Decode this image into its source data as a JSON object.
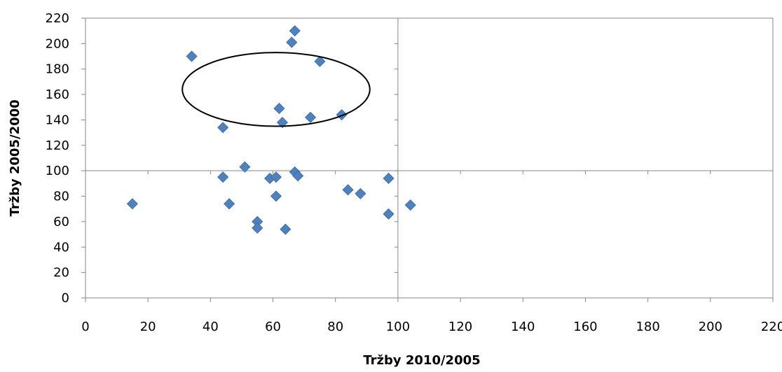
{
  "chart_data": {
    "type": "scatter",
    "title": "",
    "xlabel": "Tržby 2010/2005",
    "ylabel": "Tržby 2005/2000",
    "xlim": [
      0,
      220
    ],
    "ylim": [
      0,
      220
    ],
    "x_ticks": [
      0,
      20,
      40,
      60,
      80,
      100,
      120,
      140,
      160,
      180,
      200,
      220
    ],
    "y_ticks": [
      0,
      20,
      40,
      60,
      80,
      100,
      120,
      140,
      160,
      180,
      200,
      220
    ],
    "grid": false,
    "legend": "none",
    "reference_lines": {
      "x": 100,
      "y": 100
    },
    "highlight_ellipse": {
      "center": [
        61,
        164
      ],
      "radius": [
        30,
        29
      ]
    },
    "marker_color": "#4f81bd",
    "series": [
      {
        "points": [
          [
            15,
            74
          ],
          [
            34,
            190
          ],
          [
            44,
            134
          ],
          [
            44,
            95
          ],
          [
            46,
            74
          ],
          [
            51,
            103
          ],
          [
            55,
            60
          ],
          [
            55,
            55
          ],
          [
            59,
            94
          ],
          [
            61,
            95
          ],
          [
            61,
            80
          ],
          [
            62,
            149
          ],
          [
            63,
            138
          ],
          [
            64,
            54
          ],
          [
            66,
            201
          ],
          [
            67,
            210
          ],
          [
            67,
            99
          ],
          [
            68,
            96
          ],
          [
            72,
            142
          ],
          [
            75,
            186
          ],
          [
            82,
            144
          ],
          [
            84,
            85
          ],
          [
            88,
            82
          ],
          [
            97,
            94
          ],
          [
            97,
            66
          ],
          [
            104,
            73
          ]
        ]
      }
    ]
  }
}
